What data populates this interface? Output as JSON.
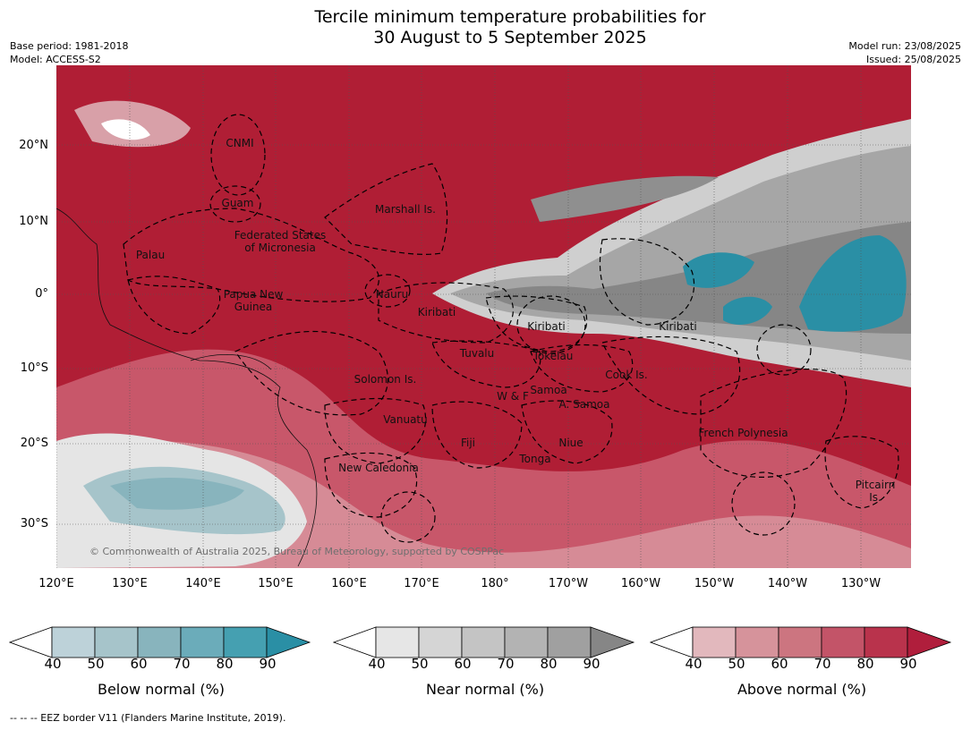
{
  "title": {
    "line1": "Tercile minimum temperature probabilities for",
    "line2": "30 August to 5 September 2025"
  },
  "meta": {
    "base_period": "Base period: 1981-2018",
    "model": "Model: ACCESS-S2",
    "model_run": "Model run: 23/08/2025",
    "issued": "Issued: 25/08/2025"
  },
  "axes": {
    "lat_ticks": [
      "20°N",
      "10°N",
      "0°",
      "10°S",
      "20°S",
      "30°S"
    ],
    "lon_ticks": [
      "120°E",
      "130°E",
      "140°E",
      "150°E",
      "160°E",
      "170°E",
      "180°",
      "170°W",
      "160°W",
      "150°W",
      "140°W",
      "130°W"
    ]
  },
  "regions": [
    {
      "name": "CNMI"
    },
    {
      "name": "Guam"
    },
    {
      "name": "Marshall Is."
    },
    {
      "name": "Federated States\nof Micronesia"
    },
    {
      "name": "Palau"
    },
    {
      "name": "Nauru"
    },
    {
      "name": "Papua New\nGuinea"
    },
    {
      "name": "Kiribati"
    },
    {
      "name": "Kiribati"
    },
    {
      "name": "Kiribati"
    },
    {
      "name": "Tuvalu"
    },
    {
      "name": "Tokelau"
    },
    {
      "name": "Cook Is."
    },
    {
      "name": "Solomon Is."
    },
    {
      "name": "W & F"
    },
    {
      "name": "Samoa"
    },
    {
      "name": "A. Samoa"
    },
    {
      "name": "Vanuatu"
    },
    {
      "name": "Fiji"
    },
    {
      "name": "Niue"
    },
    {
      "name": "French Polynesia"
    },
    {
      "name": "Tonga"
    },
    {
      "name": "New Caledonia"
    },
    {
      "name": "Pitcairn\nIs."
    }
  ],
  "copyright": "© Commonwealth of Australia 2025, Bureau of Meteorology, supported by COSPPac",
  "colorbars": [
    {
      "label": "Below normal (%)",
      "ticks": [
        "40",
        "50",
        "60",
        "70",
        "80",
        "90"
      ],
      "colors": [
        "#bdd2d9",
        "#a6c4ca",
        "#88b4bd",
        "#6bacba",
        "#45a0b1"
      ],
      "extend": "#2a8fa5"
    },
    {
      "label": "Near normal (%)",
      "ticks": [
        "40",
        "50",
        "60",
        "70",
        "80",
        "90"
      ],
      "colors": [
        "#e6e6e6",
        "#d5d5d5",
        "#c4c4c4",
        "#b3b3b3",
        "#a0a0a0"
      ],
      "extend": "#868686"
    },
    {
      "label": "Above normal (%)",
      "ticks": [
        "40",
        "50",
        "60",
        "70",
        "80",
        "90"
      ],
      "colors": [
        "#e2b8bd",
        "#d6939b",
        "#cc7580",
        "#c35468",
        "#b9334c"
      ],
      "extend": "#b01e3c"
    }
  ],
  "footnote": "--  --  -- EEZ border V11 (Flanders Marine Institute, 2019)."
}
